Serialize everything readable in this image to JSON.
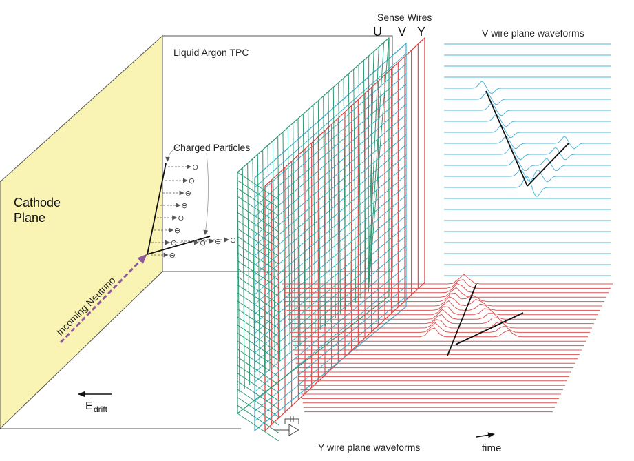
{
  "labels": {
    "sense_wires": "Sense Wires",
    "u": "U",
    "v": "V",
    "y": "Y",
    "v_waveforms": "V wire plane waveforms",
    "tpc": "Liquid Argon TPC",
    "charged_particles": "Charged Particles",
    "cathode_line1": "Cathode",
    "cathode_line2": "Plane",
    "incoming_neutrino": "Incoming Neutrino",
    "e_main": "E",
    "e_sub": "drift",
    "y_waveforms": "Y wire plane waveforms",
    "time": "time",
    "electron_symbol": "⊖"
  },
  "colors": {
    "cathode_fill": "#faf4b4",
    "box_stroke": "#555555",
    "u_wires": "#2e9a72",
    "v_wires": "#3aaed0",
    "y_wires": "#e03c3c",
    "v_waveforms": "#4db6dd",
    "y_waveforms": "#e05555",
    "neutrino": "#8e5a9a",
    "tracks": "#111111"
  }
}
